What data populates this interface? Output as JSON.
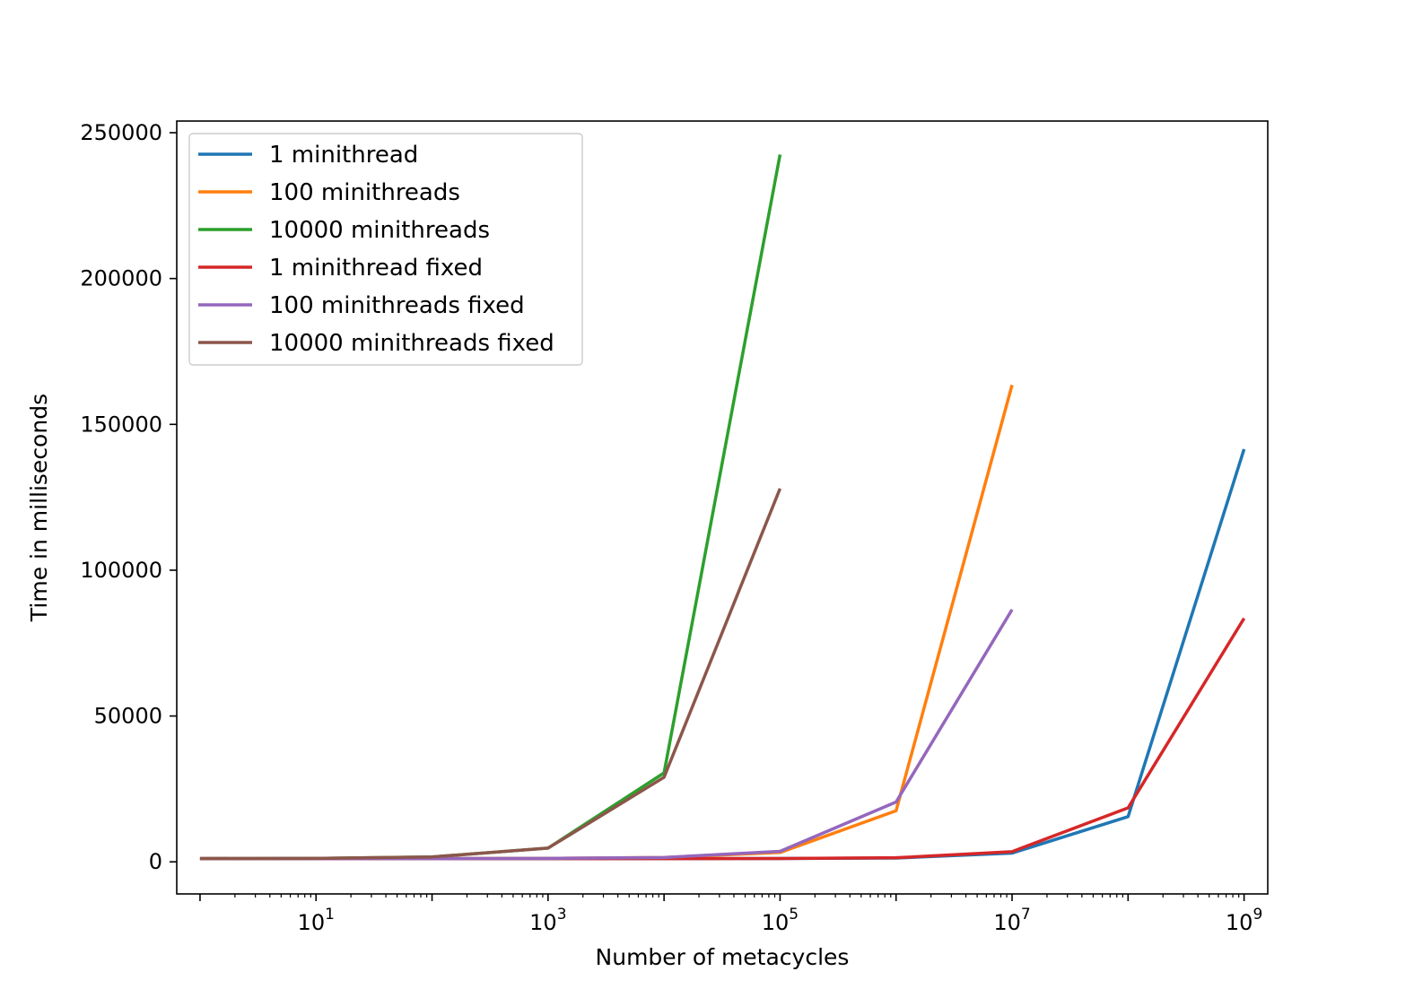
{
  "chart_data": {
    "type": "line",
    "title": "",
    "xlabel": "Number of metacycles",
    "ylabel": "Time in milliseconds",
    "xscale": "log",
    "xlim": [
      0.63,
      1600000000.0
    ],
    "ylim": [
      -11000,
      254000
    ],
    "x_ticks": [
      {
        "base": "10",
        "exp": "1",
        "value": 10
      },
      {
        "base": "10",
        "exp": "3",
        "value": 1000
      },
      {
        "base": "10",
        "exp": "5",
        "value": 100000
      },
      {
        "base": "10",
        "exp": "7",
        "value": 10000000
      },
      {
        "base": "10",
        "exp": "9",
        "value": 1000000000
      }
    ],
    "y_ticks": [
      {
        "label": "0",
        "value": 0
      },
      {
        "label": "50000",
        "value": 50000
      },
      {
        "label": "100000",
        "value": 100000
      },
      {
        "label": "150000",
        "value": 150000
      },
      {
        "label": "200000",
        "value": 200000
      },
      {
        "label": "250000",
        "value": 250000
      }
    ],
    "grid": false,
    "legend_position": "upper-left",
    "series": [
      {
        "name": "1 minithread",
        "color": "#1f77b4",
        "x": [
          1,
          10,
          100,
          1000,
          10000,
          100000,
          1000000,
          10000000,
          100000000,
          1000000000
        ],
        "y": [
          1100,
          1100,
          1100,
          1100,
          1100,
          1150,
          1300,
          3000,
          15500,
          141500
        ]
      },
      {
        "name": "100 minithreads",
        "color": "#ff7f0e",
        "x": [
          1,
          10,
          100,
          1000,
          10000,
          100000,
          1000000,
          10000000
        ],
        "y": [
          1100,
          1100,
          1100,
          1200,
          1500,
          3200,
          17500,
          163500
        ]
      },
      {
        "name": "10000 minithreads",
        "color": "#2ca02c",
        "x": [
          1,
          10,
          100,
          1000,
          10000,
          100000
        ],
        "y": [
          1100,
          1200,
          1700,
          4700,
          30500,
          242500
        ]
      },
      {
        "name": "1 minithread fixed",
        "color": "#d62728",
        "x": [
          1,
          10,
          100,
          1000,
          10000,
          100000,
          1000000,
          10000000,
          100000000,
          1000000000
        ],
        "y": [
          1100,
          1100,
          1100,
          1100,
          1100,
          1150,
          1400,
          3500,
          18500,
          83500
        ]
      },
      {
        "name": "100 minithreads fixed",
        "color": "#9467bd",
        "x": [
          1,
          10,
          100,
          1000,
          10000,
          100000,
          1000000,
          10000000
        ],
        "y": [
          1100,
          1100,
          1100,
          1200,
          1500,
          3600,
          20500,
          86500
        ]
      },
      {
        "name": "10000 minithreads fixed",
        "color": "#8c564b",
        "x": [
          1,
          10,
          100,
          1000,
          10000,
          100000
        ],
        "y": [
          1100,
          1200,
          1700,
          4700,
          29000,
          128000
        ]
      }
    ]
  }
}
